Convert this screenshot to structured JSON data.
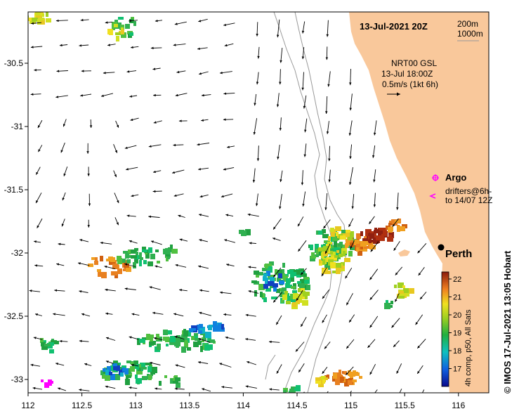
{
  "map": {
    "title": "13-Jul-2021 20Z",
    "depth_labels": [
      "200m",
      "1000m"
    ],
    "current_info": {
      "line1": "NRT00 GSL",
      "line2": "13-Jul 18:00Z",
      "line3": "0.5m/s (1kt 6h)"
    },
    "legend": {
      "argo": "Argo",
      "drifters_line1": "drifters@6h-",
      "drifters_line2": "to 14/07 12Z"
    },
    "city": "Perth",
    "credit": "© IMOS 17-Jul-2021 13:05 Hobart",
    "colorbar_title": "4h comp, p50, All Sats",
    "colorbar_ticks": [
      "22",
      "21",
      "20",
      "19",
      "18",
      "17"
    ],
    "x_ticks": [
      "112",
      "112.5",
      "113",
      "113.5",
      "114",
      "114.5",
      "115",
      "115.5",
      "116"
    ],
    "y_ticks": [
      "-30.5",
      "-31",
      "-31.5",
      "-32",
      "-32.5",
      "-33"
    ],
    "colors": {
      "land": "#f9c89b",
      "argo": "#ff00ff",
      "city": "#000000"
    }
  }
}
